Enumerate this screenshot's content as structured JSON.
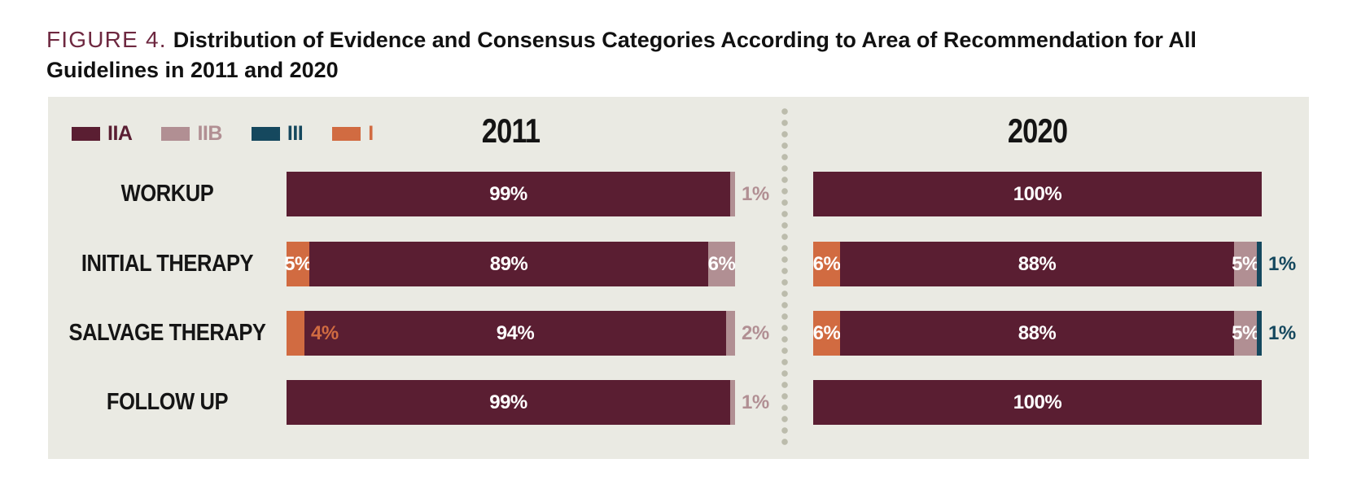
{
  "figure": {
    "label": "FIGURE 4.",
    "title": "Distribution of Evidence and Consensus Categories According to Area of Recommendation for All Guidelines in 2011 and 2020"
  },
  "legend": {
    "items": [
      {
        "key": "IIA",
        "label": "IIA"
      },
      {
        "key": "IIB",
        "label": "IIB"
      },
      {
        "key": "III",
        "label": "III"
      },
      {
        "key": "I",
        "label": "I"
      }
    ]
  },
  "colors": {
    "IIA": "#5a1e32",
    "IIB": "#b18f93",
    "III": "#15485e",
    "I": "#d16b41",
    "panel_bg": "#eaeae3",
    "divider_dot": "#bcbcac",
    "figure_label_accent": "#6e2840",
    "title_text": "#111111",
    "bar_label_white": "#ffffff"
  },
  "chart_data": {
    "type": "bar",
    "orientation": "horizontal-stacked",
    "unit": "%",
    "title": "Distribution of Evidence and Consensus Categories According to Area of Recommendation for All Guidelines in 2011 and 2020",
    "categories": [
      "WORKUP",
      "INITIAL THERAPY",
      "SALVAGE THERAPY",
      "FOLLOW UP"
    ],
    "legend_entries": [
      "IIA",
      "IIB",
      "III",
      "I"
    ],
    "xlim": [
      0,
      100
    ],
    "grid": false,
    "legend_position": "top-left",
    "groups": [
      {
        "label": "2011",
        "rows": [
          {
            "category": "WORKUP",
            "segments": [
              {
                "key": "IIA",
                "value": 99,
                "label": "99%",
                "label_placement": "inside"
              },
              {
                "key": "IIB",
                "value": 1,
                "label": "1%",
                "label_placement": "outside"
              }
            ]
          },
          {
            "category": "INITIAL THERAPY",
            "segments": [
              {
                "key": "I",
                "value": 5,
                "label": "5%",
                "label_placement": "inside"
              },
              {
                "key": "IIA",
                "value": 89,
                "label": "89%",
                "label_placement": "inside"
              },
              {
                "key": "IIB",
                "value": 6,
                "label": "6%",
                "label_placement": "inside"
              }
            ]
          },
          {
            "category": "SALVAGE THERAPY",
            "segments": [
              {
                "key": "I",
                "value": 4,
                "label": "4%",
                "label_placement": "after"
              },
              {
                "key": "IIA",
                "value": 94,
                "label": "94%",
                "label_placement": "inside"
              },
              {
                "key": "IIB",
                "value": 2,
                "label": "2%",
                "label_placement": "outside"
              }
            ]
          },
          {
            "category": "FOLLOW UP",
            "segments": [
              {
                "key": "IIA",
                "value": 99,
                "label": "99%",
                "label_placement": "inside"
              },
              {
                "key": "IIB",
                "value": 1,
                "label": "1%",
                "label_placement": "outside"
              }
            ]
          }
        ]
      },
      {
        "label": "2020",
        "rows": [
          {
            "category": "WORKUP",
            "segments": [
              {
                "key": "IIA",
                "value": 100,
                "label": "100%",
                "label_placement": "inside"
              }
            ]
          },
          {
            "category": "INITIAL THERAPY",
            "segments": [
              {
                "key": "I",
                "value": 6,
                "label": "6%",
                "label_placement": "inside"
              },
              {
                "key": "IIA",
                "value": 88,
                "label": "88%",
                "label_placement": "inside"
              },
              {
                "key": "IIB",
                "value": 5,
                "label": "5%",
                "label_placement": "inside"
              },
              {
                "key": "III",
                "value": 1,
                "label": "1%",
                "label_placement": "outside"
              }
            ]
          },
          {
            "category": "SALVAGE THERAPY",
            "segments": [
              {
                "key": "I",
                "value": 6,
                "label": "6%",
                "label_placement": "inside"
              },
              {
                "key": "IIA",
                "value": 88,
                "label": "88%",
                "label_placement": "inside"
              },
              {
                "key": "IIB",
                "value": 5,
                "label": "5%",
                "label_placement": "inside"
              },
              {
                "key": "III",
                "value": 1,
                "label": "1%",
                "label_placement": "outside"
              }
            ]
          },
          {
            "category": "FOLLOW UP",
            "segments": [
              {
                "key": "IIA",
                "value": 100,
                "label": "100%",
                "label_placement": "inside"
              }
            ]
          }
        ]
      }
    ]
  }
}
